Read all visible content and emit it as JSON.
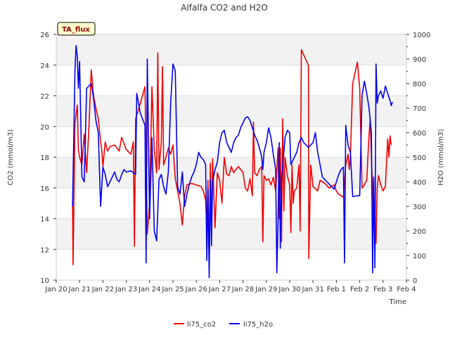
{
  "chart_data": {
    "type": "line",
    "title": "Alfalfa CO2 and H2O",
    "xlabel": "Time",
    "ylabel_left": "CO2 (mmol/m3)",
    "ylabel_right": "H2O (mmol/m3)",
    "ylim_left": [
      10,
      26
    ],
    "ylim_right": [
      0,
      1000
    ],
    "xlim": [
      0,
      15
    ],
    "x_ticks": [
      {
        "x": 0,
        "label": "Jan 20"
      },
      {
        "x": 1,
        "label": "Jan 21"
      },
      {
        "x": 2,
        "label": "Jan 22"
      },
      {
        "x": 3,
        "label": "Jan 23"
      },
      {
        "x": 4,
        "label": "Jan 24"
      },
      {
        "x": 5,
        "label": "Jan 25"
      },
      {
        "x": 6,
        "label": "Jan 26"
      },
      {
        "x": 7,
        "label": "Jan 27"
      },
      {
        "x": 8,
        "label": "Jan 28"
      },
      {
        "x": 9,
        "label": "Jan 29"
      },
      {
        "x": 10,
        "label": "Jan 30"
      },
      {
        "x": 11,
        "label": "Jan 31"
      },
      {
        "x": 12,
        "label": "Feb 1"
      },
      {
        "x": 13,
        "label": "Feb 2"
      },
      {
        "x": 14,
        "label": "Feb 3"
      },
      {
        "x": 15,
        "label": "Feb 4"
      }
    ],
    "y_ticks_left": [
      10,
      12,
      14,
      16,
      18,
      20,
      22,
      24,
      26
    ],
    "y_ticks_right": [
      0,
      100,
      200,
      300,
      400,
      500,
      600,
      700,
      800,
      900,
      1000
    ],
    "grid": true,
    "annotation_box": "TA_flux",
    "legend_position": "bottom-center",
    "series": [
      {
        "name": "li75_co2",
        "axis": "left",
        "color": "#ee0000",
        "points": [
          [
            0.7,
            15.1
          ],
          [
            0.72,
            11.0
          ],
          [
            0.8,
            20.2
          ],
          [
            0.9,
            21.4
          ],
          [
            0.95,
            18.5
          ],
          [
            1.0,
            18.0
          ],
          [
            1.1,
            17.5
          ],
          [
            1.2,
            19.5
          ],
          [
            1.3,
            17.0
          ],
          [
            1.4,
            20.0
          ],
          [
            1.5,
            23.7
          ],
          [
            1.6,
            22.0
          ],
          [
            1.7,
            21.2
          ],
          [
            1.8,
            20.5
          ],
          [
            1.9,
            19.0
          ],
          [
            1.95,
            18.5
          ],
          [
            2.0,
            17.4
          ],
          [
            2.1,
            19.0
          ],
          [
            2.2,
            18.4
          ],
          [
            2.3,
            18.7
          ],
          [
            2.5,
            18.8
          ],
          [
            2.7,
            18.4
          ],
          [
            2.8,
            19.3
          ],
          [
            3.0,
            18.5
          ],
          [
            3.2,
            18.2
          ],
          [
            3.3,
            19.0
          ],
          [
            3.35,
            12.2
          ],
          [
            3.4,
            20.5
          ],
          [
            3.6,
            21.5
          ],
          [
            3.8,
            22.6
          ],
          [
            3.9,
            13.0
          ],
          [
            4.0,
            15.0
          ],
          [
            4.1,
            22.6
          ],
          [
            4.2,
            18.5
          ],
          [
            4.3,
            17.0
          ],
          [
            4.35,
            24.8
          ],
          [
            4.4,
            17.2
          ],
          [
            4.5,
            19.0
          ],
          [
            4.55,
            23.9
          ],
          [
            4.6,
            17.5
          ],
          [
            4.7,
            18.0
          ],
          [
            4.8,
            18.6
          ],
          [
            4.9,
            18.2
          ],
          [
            5.0,
            18.8
          ],
          [
            5.1,
            16.6
          ],
          [
            5.2,
            15.8
          ],
          [
            5.3,
            15.0
          ],
          [
            5.4,
            13.6
          ],
          [
            5.5,
            15.5
          ],
          [
            5.6,
            16.2
          ],
          [
            5.8,
            16.3
          ],
          [
            6.0,
            16.2
          ],
          [
            6.2,
            16.1
          ],
          [
            6.3,
            15.8
          ],
          [
            6.4,
            15.2
          ],
          [
            6.45,
            13.4
          ],
          [
            6.5,
            16.5
          ],
          [
            6.55,
            11.0
          ],
          [
            6.6,
            17.6
          ],
          [
            6.65,
            13.3
          ],
          [
            6.7,
            17.9
          ],
          [
            6.8,
            13.4
          ],
          [
            6.9,
            17.0
          ],
          [
            7.0,
            16.5
          ],
          [
            7.1,
            15.0
          ],
          [
            7.2,
            18.0
          ],
          [
            7.3,
            16.9
          ],
          [
            7.4,
            16.8
          ],
          [
            7.5,
            17.4
          ],
          [
            7.6,
            17.0
          ],
          [
            7.8,
            17.4
          ],
          [
            8.0,
            17.0
          ],
          [
            8.1,
            16.0
          ],
          [
            8.2,
            15.8
          ],
          [
            8.3,
            16.6
          ],
          [
            8.4,
            15.5
          ],
          [
            8.45,
            20.3
          ],
          [
            8.5,
            17.0
          ],
          [
            8.6,
            16.8
          ],
          [
            8.7,
            17.2
          ],
          [
            8.8,
            17.4
          ],
          [
            8.85,
            12.5
          ],
          [
            8.9,
            16.8
          ],
          [
            9.0,
            16.5
          ],
          [
            9.1,
            16.6
          ],
          [
            9.2,
            16.2
          ],
          [
            9.3,
            16.7
          ],
          [
            9.4,
            15.8
          ],
          [
            9.5,
            18.6
          ],
          [
            9.55,
            14.0
          ],
          [
            9.6,
            18.6
          ],
          [
            9.65,
            12.5
          ],
          [
            9.7,
            20.5
          ],
          [
            9.75,
            14.5
          ],
          [
            9.8,
            18.0
          ],
          [
            9.9,
            16.8
          ],
          [
            10.0,
            16.2
          ],
          [
            10.05,
            13.1
          ],
          [
            10.1,
            17.5
          ],
          [
            10.15,
            15.0
          ],
          [
            10.2,
            15.8
          ],
          [
            10.3,
            16.0
          ],
          [
            10.4,
            17.5
          ],
          [
            10.45,
            13.2
          ],
          [
            10.5,
            25.0
          ],
          [
            10.8,
            24.0
          ],
          [
            10.82,
            11.4
          ],
          [
            10.9,
            17.5
          ],
          [
            11.0,
            16.1
          ],
          [
            11.2,
            15.8
          ],
          [
            11.3,
            16.5
          ],
          [
            11.5,
            16.3
          ],
          [
            11.7,
            16.0
          ],
          [
            11.9,
            16.2
          ],
          [
            12.0,
            15.8
          ],
          [
            12.1,
            15.6
          ],
          [
            12.3,
            15.4
          ],
          [
            12.4,
            17.5
          ],
          [
            12.5,
            18.2
          ],
          [
            12.55,
            17.2
          ],
          [
            12.6,
            18.0
          ],
          [
            12.7,
            22.8
          ],
          [
            12.9,
            24.2
          ],
          [
            13.0,
            22.5
          ],
          [
            13.1,
            16.0
          ],
          [
            13.2,
            16.2
          ],
          [
            13.3,
            16.5
          ],
          [
            13.4,
            19.5
          ],
          [
            13.45,
            20.5
          ],
          [
            13.5,
            18.0
          ],
          [
            13.6,
            14.0
          ],
          [
            13.65,
            13.3
          ],
          [
            13.7,
            12.4
          ],
          [
            13.75,
            16.0
          ],
          [
            13.8,
            16.8
          ],
          [
            13.9,
            16.2
          ],
          [
            14.0,
            15.8
          ],
          [
            14.1,
            16.1
          ],
          [
            14.2,
            19.2
          ],
          [
            14.25,
            18.0
          ],
          [
            14.3,
            19.4
          ],
          [
            14.35,
            18.8
          ]
        ]
      },
      {
        "name": "li75_h2o",
        "axis": "right",
        "color": "#0000ee",
        "points": [
          [
            0.7,
            300
          ],
          [
            0.8,
            850
          ],
          [
            0.85,
            955
          ],
          [
            0.9,
            910
          ],
          [
            0.95,
            780
          ],
          [
            1.0,
            890
          ],
          [
            1.1,
            420
          ],
          [
            1.2,
            400
          ],
          [
            1.3,
            780
          ],
          [
            1.4,
            790
          ],
          [
            1.5,
            800
          ],
          [
            1.6,
            740
          ],
          [
            1.7,
            650
          ],
          [
            1.8,
            600
          ],
          [
            1.9,
            300
          ],
          [
            2.0,
            460
          ],
          [
            2.1,
            430
          ],
          [
            2.2,
            380
          ],
          [
            2.3,
            400
          ],
          [
            2.4,
            420
          ],
          [
            2.5,
            440
          ],
          [
            2.6,
            410
          ],
          [
            2.7,
            400
          ],
          [
            2.8,
            430
          ],
          [
            2.9,
            450
          ],
          [
            3.0,
            440
          ],
          [
            3.2,
            445
          ],
          [
            3.4,
            430
          ],
          [
            3.45,
            760
          ],
          [
            3.6,
            680
          ],
          [
            3.8,
            630
          ],
          [
            3.85,
            70
          ],
          [
            3.9,
            900
          ],
          [
            4.0,
            250
          ],
          [
            4.1,
            580
          ],
          [
            4.2,
            200
          ],
          [
            4.3,
            160
          ],
          [
            4.4,
            410
          ],
          [
            4.5,
            430
          ],
          [
            4.6,
            380
          ],
          [
            4.7,
            350
          ],
          [
            4.8,
            440
          ],
          [
            4.9,
            720
          ],
          [
            5.0,
            880
          ],
          [
            5.1,
            850
          ],
          [
            5.2,
            380
          ],
          [
            5.3,
            350
          ],
          [
            5.4,
            440
          ],
          [
            5.5,
            300
          ],
          [
            5.6,
            350
          ],
          [
            5.7,
            390
          ],
          [
            5.8,
            420
          ],
          [
            5.9,
            440
          ],
          [
            6.0,
            470
          ],
          [
            6.1,
            520
          ],
          [
            6.2,
            500
          ],
          [
            6.3,
            490
          ],
          [
            6.4,
            470
          ],
          [
            6.45,
            80
          ],
          [
            6.5,
            370
          ],
          [
            6.55,
            10
          ],
          [
            6.6,
            410
          ],
          [
            6.65,
            140
          ],
          [
            6.7,
            400
          ],
          [
            6.8,
            450
          ],
          [
            6.9,
            480
          ],
          [
            7.0,
            560
          ],
          [
            7.1,
            600
          ],
          [
            7.2,
            610
          ],
          [
            7.3,
            560
          ],
          [
            7.4,
            540
          ],
          [
            7.5,
            520
          ],
          [
            7.6,
            560
          ],
          [
            7.7,
            580
          ],
          [
            7.8,
            590
          ],
          [
            7.9,
            620
          ],
          [
            8.0,
            640
          ],
          [
            8.1,
            660
          ],
          [
            8.2,
            665
          ],
          [
            8.3,
            650
          ],
          [
            8.4,
            620
          ],
          [
            8.5,
            590
          ],
          [
            8.6,
            570
          ],
          [
            8.7,
            540
          ],
          [
            8.8,
            500
          ],
          [
            8.85,
            450
          ],
          [
            8.9,
            520
          ],
          [
            9.0,
            560
          ],
          [
            9.1,
            620
          ],
          [
            9.2,
            580
          ],
          [
            9.3,
            510
          ],
          [
            9.4,
            450
          ],
          [
            9.45,
            30
          ],
          [
            9.5,
            230
          ],
          [
            9.55,
            560
          ],
          [
            9.6,
            130
          ],
          [
            9.65,
            420
          ],
          [
            9.7,
            460
          ],
          [
            9.8,
            580
          ],
          [
            9.9,
            610
          ],
          [
            10.0,
            600
          ],
          [
            10.05,
            470
          ],
          [
            10.1,
            480
          ],
          [
            10.2,
            500
          ],
          [
            10.3,
            520
          ],
          [
            10.4,
            560
          ],
          [
            10.5,
            580
          ],
          [
            10.6,
            560
          ],
          [
            10.8,
            540
          ],
          [
            11.0,
            560
          ],
          [
            11.1,
            600
          ],
          [
            11.2,
            520
          ],
          [
            11.3,
            470
          ],
          [
            11.4,
            420
          ],
          [
            11.5,
            410
          ],
          [
            11.6,
            400
          ],
          [
            11.7,
            390
          ],
          [
            11.8,
            380
          ],
          [
            11.9,
            370
          ],
          [
            12.0,
            400
          ],
          [
            12.1,
            430
          ],
          [
            12.2,
            450
          ],
          [
            12.3,
            460
          ],
          [
            12.35,
            70
          ],
          [
            12.4,
            630
          ],
          [
            12.5,
            550
          ],
          [
            12.6,
            520
          ],
          [
            12.7,
            340
          ],
          [
            13.0,
            345
          ],
          [
            13.1,
            750
          ],
          [
            13.2,
            810
          ],
          [
            13.3,
            760
          ],
          [
            13.4,
            700
          ],
          [
            13.5,
            600
          ],
          [
            13.55,
            30
          ],
          [
            13.6,
            420
          ],
          [
            13.65,
            50
          ],
          [
            13.7,
            880
          ],
          [
            13.75,
            720
          ],
          [
            13.8,
            750
          ],
          [
            13.9,
            770
          ],
          [
            14.0,
            740
          ],
          [
            14.1,
            790
          ],
          [
            14.2,
            760
          ],
          [
            14.3,
            730
          ],
          [
            14.35,
            710
          ],
          [
            14.4,
            725
          ]
        ]
      }
    ]
  }
}
